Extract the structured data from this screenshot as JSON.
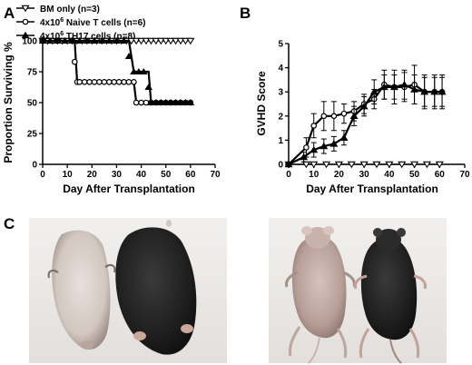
{
  "panels": {
    "a": "A",
    "b": "B",
    "c": "C"
  },
  "chart_data": [
    {
      "type": "line",
      "panel": "A",
      "xlabel": "Day After Transplantation",
      "ylabel": "Proportion Surviving %",
      "xlim": [
        0,
        70
      ],
      "ylim": [
        0,
        100
      ],
      "xticks": [
        0,
        10,
        20,
        30,
        40,
        50,
        60,
        70
      ],
      "yticks": [
        0,
        25,
        50,
        75,
        100
      ],
      "step": true,
      "legend_position": "top",
      "legend": [
        {
          "base": "BM only (n=3)",
          "marker": "triangle-down-open"
        },
        {
          "base": "4x10",
          "sup": "6",
          "rest": " Naive T cells (n=6)",
          "marker": "circle-open"
        },
        {
          "base": "4x10",
          "sup": "6",
          "rest": " TH17 cells (n=8)",
          "marker": "triangle-up-filled"
        }
      ],
      "series": [
        {
          "name": "BM only (n=3)",
          "marker": "triangle-down-open",
          "x": [
            0,
            60
          ],
          "y": [
            100,
            100
          ],
          "mx": [
            0,
            2,
            4,
            6,
            8,
            10,
            12,
            14,
            16,
            18,
            20,
            22,
            24,
            26,
            28,
            30,
            32,
            34,
            36,
            38,
            40,
            42,
            44,
            46,
            48,
            50,
            52,
            54,
            56,
            58,
            60
          ],
          "my": [
            100,
            100,
            100,
            100,
            100,
            100,
            100,
            100,
            100,
            100,
            100,
            100,
            100,
            100,
            100,
            100,
            100,
            100,
            100,
            100,
            100,
            100,
            100,
            100,
            100,
            100,
            100,
            100,
            100,
            100,
            100
          ]
        },
        {
          "name": "4x10^6 Naive T cells (n=6)",
          "marker": "circle-open",
          "x": [
            0,
            13,
            14,
            37,
            38,
            60
          ],
          "y": [
            100,
            100,
            66.7,
            66.7,
            50,
            50
          ],
          "mx": [
            0,
            2,
            4,
            6,
            8,
            10,
            12,
            13,
            14,
            15,
            17,
            19,
            21,
            23,
            25,
            27,
            29,
            31,
            33,
            35,
            37,
            38,
            40,
            42,
            44,
            46,
            48,
            50,
            52,
            54,
            56,
            58,
            60
          ],
          "my": [
            100,
            100,
            100,
            100,
            100,
            100,
            100,
            83,
            66.7,
            66.7,
            66.7,
            66.7,
            66.7,
            66.7,
            66.7,
            66.7,
            66.7,
            66.7,
            66.7,
            66.7,
            66.7,
            50,
            50,
            50,
            50,
            50,
            50,
            50,
            50,
            50,
            50,
            50,
            50
          ]
        },
        {
          "name": "4x10^6 TH17 cells (n=8)",
          "marker": "triangle-up-filled",
          "x": [
            0,
            35,
            37,
            43,
            44,
            60
          ],
          "y": [
            100,
            100,
            75,
            75,
            50,
            50
          ],
          "mx": [
            0,
            3,
            6,
            9,
            12,
            15,
            18,
            21,
            24,
            27,
            30,
            33,
            35,
            37,
            39,
            41,
            43,
            44,
            46,
            48,
            50,
            52,
            54,
            56,
            58,
            60
          ],
          "my": [
            100,
            100,
            100,
            100,
            100,
            100,
            100,
            100,
            100,
            100,
            100,
            100,
            87.5,
            75,
            75,
            75,
            62.5,
            50,
            50,
            50,
            50,
            50,
            50,
            50,
            50,
            50
          ]
        }
      ]
    },
    {
      "type": "line",
      "panel": "B",
      "xlabel": "Day After Transplantation",
      "ylabel": "GVHD Score",
      "xlim": [
        0,
        70
      ],
      "ylim": [
        0,
        5
      ],
      "xticks": [
        0,
        10,
        20,
        30,
        40,
        50,
        60,
        70
      ],
      "yticks": [
        0,
        1,
        2,
        3,
        4,
        5
      ],
      "series": [
        {
          "name": "BM only (n=3)",
          "marker": "triangle-down-open",
          "x": [
            0,
            7,
            10,
            15,
            20,
            25,
            30,
            35,
            40,
            45,
            50,
            55,
            60
          ],
          "y": [
            0,
            0,
            0,
            0,
            0,
            0,
            0,
            0,
            0,
            0,
            0,
            0,
            0
          ],
          "err": [
            0,
            0,
            0,
            0,
            0,
            0,
            0,
            0,
            0,
            0,
            0,
            0,
            0
          ]
        },
        {
          "name": "4x10^6 Naive T cells (n=6)",
          "marker": "circle-open",
          "x": [
            0,
            7,
            10,
            14,
            18,
            22,
            26,
            30,
            34,
            38,
            42,
            46,
            50,
            54,
            58,
            61
          ],
          "y": [
            0,
            0.7,
            1.6,
            2.0,
            2.0,
            2.1,
            2.2,
            2.5,
            2.7,
            3.3,
            3.2,
            3.2,
            3.3,
            3.0,
            3.0,
            3.0
          ],
          "err": [
            0,
            0.4,
            0.5,
            0.6,
            0.6,
            0.4,
            0.4,
            0.4,
            0.4,
            0.6,
            0.7,
            0.6,
            0.8,
            0.7,
            0.7,
            0.7
          ]
        },
        {
          "name": "4x10^6 TH17 cells (n=8)",
          "marker": "triangle-up-filled",
          "x": [
            0,
            6,
            10,
            14,
            18,
            22,
            26,
            30,
            34,
            38,
            42,
            46,
            50,
            54,
            58,
            61
          ],
          "y": [
            0,
            0.3,
            0.6,
            0.75,
            0.85,
            1.1,
            2.0,
            2.4,
            3.0,
            3.2,
            3.2,
            3.3,
            3.1,
            3.0,
            3.0,
            3.0
          ],
          "err": [
            0,
            0.2,
            0.3,
            0.3,
            0.3,
            0.3,
            0.4,
            0.4,
            0.5,
            0.5,
            0.5,
            0.6,
            0.6,
            0.6,
            0.6,
            0.6
          ]
        }
      ]
    }
  ],
  "photos": {
    "left": {
      "mouse_left_color": "#d8cfca",
      "mouse_right_color": "#1e1e1e",
      "bg": "#eceae8"
    },
    "right": {
      "mouse_left_color": "#bfa9a3",
      "mouse_right_color": "#2a2828",
      "bg": "#ebe9e8"
    }
  }
}
